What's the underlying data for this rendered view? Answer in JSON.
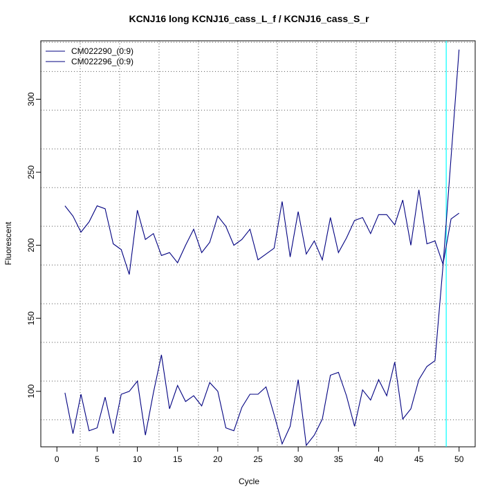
{
  "chart_data": {
    "type": "line",
    "title": "KCNJ16 long KCNJ16_cass_L_f / KCNJ16_cass_S_r",
    "xlabel": "Cycle",
    "ylabel": "Fluorescent",
    "xlim": [
      -2,
      52
    ],
    "ylim": [
      62,
      340
    ],
    "x_ticks": [
      0,
      5,
      10,
      15,
      20,
      25,
      30,
      35,
      40,
      45,
      50
    ],
    "y_ticks": [
      100,
      150,
      200,
      250,
      300
    ],
    "grid": true,
    "legend_position": "top-left",
    "line_color": "#000080",
    "threshold_line": {
      "x": 48.4,
      "color": "#00ffff"
    },
    "x": [
      1,
      2,
      3,
      4,
      5,
      6,
      7,
      8,
      9,
      10,
      11,
      12,
      13,
      14,
      15,
      16,
      17,
      18,
      19,
      20,
      21,
      22,
      23,
      24,
      25,
      26,
      27,
      28,
      29,
      30,
      31,
      32,
      33,
      34,
      35,
      36,
      37,
      38,
      39,
      40,
      41,
      42,
      43,
      44,
      45,
      46,
      47,
      48,
      49,
      50
    ],
    "series": [
      {
        "name": "CM022290_(0:9)",
        "values": [
          227,
          220,
          209,
          216,
          227,
          225,
          201,
          197,
          180,
          224,
          204,
          208,
          193,
          195,
          188,
          200,
          211,
          195,
          202,
          220,
          213,
          200,
          204,
          211,
          190,
          194,
          198,
          230,
          192,
          223,
          194,
          203,
          190,
          219,
          195,
          205,
          217,
          219,
          208,
          221,
          221,
          214,
          231,
          200,
          238,
          201,
          203,
          187,
          218,
          222
        ]
      },
      {
        "name": "CM022296_(0:9)",
        "values": [
          99,
          71,
          98,
          73,
          75,
          96,
          71,
          98,
          100,
          107,
          70,
          99,
          125,
          88,
          104,
          93,
          97,
          90,
          106,
          100,
          75,
          73,
          89,
          98,
          98,
          103,
          84,
          64,
          76,
          108,
          63,
          70,
          81,
          111,
          113,
          97,
          76,
          101,
          94,
          108,
          97,
          120,
          81,
          88,
          108,
          117,
          121,
          186,
          260,
          334
        ]
      }
    ]
  }
}
